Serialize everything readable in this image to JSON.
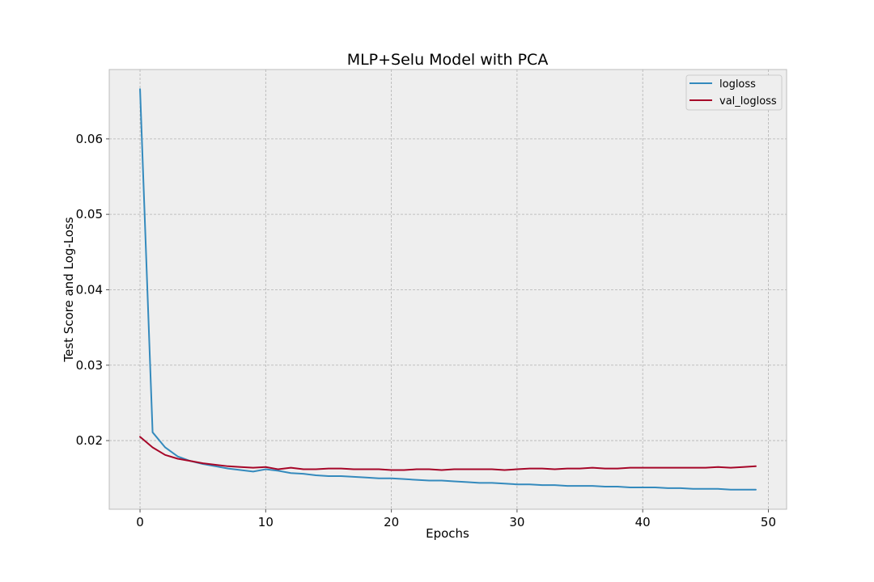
{
  "chart_data": {
    "type": "line",
    "title": "MLP+Selu Model with PCA",
    "xlabel": "Epochs",
    "ylabel": "Test Score and Log-Loss",
    "xlim": [
      -2.45,
      51.45
    ],
    "ylim": [
      0.0109,
      0.0692
    ],
    "xticks": [
      0,
      10,
      20,
      30,
      40,
      50
    ],
    "yticks": [
      0.02,
      0.03,
      0.04,
      0.05,
      0.06
    ],
    "xtick_labels": [
      "0",
      "10",
      "20",
      "30",
      "40",
      "50"
    ],
    "ytick_labels": [
      "0.02",
      "0.03",
      "0.04",
      "0.05",
      "0.06"
    ],
    "grid": true,
    "legend_position": "top-right",
    "x": [
      0,
      1,
      2,
      3,
      4,
      5,
      6,
      7,
      8,
      9,
      10,
      11,
      12,
      13,
      14,
      15,
      16,
      17,
      18,
      19,
      20,
      21,
      22,
      23,
      24,
      25,
      26,
      27,
      28,
      29,
      30,
      31,
      32,
      33,
      34,
      35,
      36,
      37,
      38,
      39,
      40,
      41,
      42,
      43,
      44,
      45,
      46,
      47,
      48,
      49
    ],
    "series": [
      {
        "name": "logloss",
        "color": "#348abd",
        "values": [
          0.0666,
          0.0211,
          0.0191,
          0.0179,
          0.0173,
          0.0169,
          0.0166,
          0.0163,
          0.0161,
          0.0159,
          0.0162,
          0.016,
          0.0157,
          0.0156,
          0.0154,
          0.0153,
          0.0153,
          0.0152,
          0.0151,
          0.015,
          0.015,
          0.0149,
          0.0148,
          0.0147,
          0.0147,
          0.0146,
          0.0145,
          0.0144,
          0.0144,
          0.0143,
          0.0142,
          0.0142,
          0.0141,
          0.0141,
          0.014,
          0.014,
          0.014,
          0.0139,
          0.0139,
          0.0138,
          0.0138,
          0.0138,
          0.0137,
          0.0137,
          0.0136,
          0.0136,
          0.0136,
          0.0135,
          0.0135,
          0.0135
        ]
      },
      {
        "name": "val_logloss",
        "color": "#a60628",
        "values": [
          0.0205,
          0.0191,
          0.0181,
          0.0176,
          0.0173,
          0.017,
          0.0168,
          0.0166,
          0.0165,
          0.0164,
          0.0165,
          0.0162,
          0.0164,
          0.0162,
          0.0162,
          0.0163,
          0.0163,
          0.0162,
          0.0162,
          0.0162,
          0.0161,
          0.0161,
          0.0162,
          0.0162,
          0.0161,
          0.0162,
          0.0162,
          0.0162,
          0.0162,
          0.0161,
          0.0162,
          0.0163,
          0.0163,
          0.0162,
          0.0163,
          0.0163,
          0.0164,
          0.0163,
          0.0163,
          0.0164,
          0.0164,
          0.0164,
          0.0164,
          0.0164,
          0.0164,
          0.0164,
          0.0165,
          0.0164,
          0.0165,
          0.0166
        ]
      }
    ]
  }
}
